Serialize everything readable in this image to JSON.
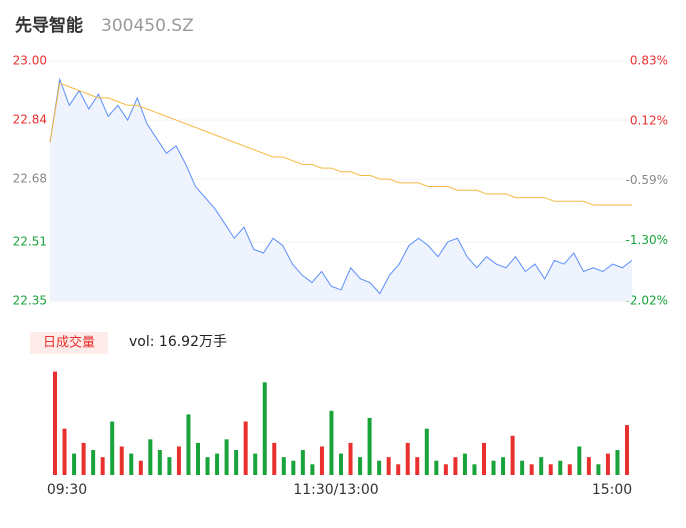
{
  "header": {
    "name": "先导智能",
    "code": "300450.SZ"
  },
  "volume_button": "日成交量",
  "volume_total": "vol: 16.92万手",
  "chart_data": [
    {
      "type": "line",
      "x": [
        0,
        4,
        8,
        12,
        16,
        20,
        24,
        28,
        32,
        36,
        40,
        44,
        48,
        52,
        56,
        60,
        64,
        68,
        72,
        76,
        80,
        84,
        88,
        92,
        96,
        100,
        104,
        108,
        112,
        116,
        120,
        124,
        128,
        132,
        136,
        140,
        144,
        148,
        152,
        156,
        160,
        164,
        168,
        172,
        176,
        180,
        184,
        188,
        192,
        196,
        200,
        204,
        208,
        212,
        216,
        220,
        224,
        228,
        232,
        236,
        240
      ],
      "series": [
        {
          "color": "#5b8ff9",
          "fill": "#eef3fd",
          "values": [
            22.78,
            22.95,
            22.88,
            22.92,
            22.87,
            22.91,
            22.85,
            22.88,
            22.84,
            22.9,
            22.83,
            22.79,
            22.75,
            22.77,
            22.72,
            22.66,
            22.63,
            22.6,
            22.56,
            22.52,
            22.55,
            22.49,
            22.48,
            22.52,
            22.5,
            22.45,
            22.42,
            22.4,
            22.43,
            22.39,
            22.38,
            22.44,
            22.41,
            22.4,
            22.37,
            22.42,
            22.45,
            22.5,
            22.52,
            22.5,
            22.47,
            22.51,
            22.52,
            22.47,
            22.44,
            22.47,
            22.45,
            22.44,
            22.47,
            22.43,
            22.45,
            22.41,
            22.46,
            22.45,
            22.48,
            22.43,
            22.44,
            22.43,
            22.45,
            22.44,
            22.46
          ]
        },
        {
          "color": "#f5b942",
          "values": [
            22.78,
            22.94,
            22.93,
            22.92,
            22.91,
            22.9,
            22.9,
            22.89,
            22.88,
            22.88,
            22.87,
            22.86,
            22.85,
            22.84,
            22.83,
            22.82,
            22.81,
            22.8,
            22.79,
            22.78,
            22.77,
            22.76,
            22.75,
            22.74,
            22.74,
            22.73,
            22.72,
            22.72,
            22.71,
            22.71,
            22.7,
            22.7,
            22.69,
            22.69,
            22.68,
            22.68,
            22.67,
            22.67,
            22.67,
            22.66,
            22.66,
            22.66,
            22.65,
            22.65,
            22.65,
            22.64,
            22.64,
            22.64,
            22.63,
            22.63,
            22.63,
            22.63,
            22.62,
            22.62,
            22.62,
            22.62,
            22.61,
            22.61,
            22.61,
            22.61,
            22.61
          ]
        }
      ],
      "xlim": [
        0,
        240
      ],
      "ylim": [
        22.35,
        23.0
      ],
      "yticks": [
        {
          "value": 23.0,
          "label": "23.00"
        },
        22.84,
        22.68,
        22.51,
        22.35
      ],
      "ytick_colors": [
        "#e8312f",
        "#e8312f",
        "#888888",
        "#19a33b",
        "#19a33b"
      ],
      "y2lim": [
        -2.02,
        0.83
      ],
      "y2ticks": [
        {
          "value": 0.83,
          "label": "0.83%"
        },
        {
          "value": 0.12,
          "label": "0.12%"
        },
        {
          "value": -0.59,
          "label": "-0.59%"
        },
        {
          "value": -1.3,
          "label": "-1.30%"
        },
        {
          "value": -2.02,
          "label": "-2.02%"
        }
      ]
    },
    {
      "type": "bar",
      "x": [
        0,
        4,
        8,
        12,
        16,
        20,
        24,
        28,
        32,
        36,
        40,
        44,
        48,
        52,
        56,
        60,
        64,
        68,
        72,
        76,
        80,
        84,
        88,
        92,
        96,
        100,
        104,
        108,
        112,
        116,
        120,
        124,
        128,
        132,
        136,
        140,
        144,
        148,
        152,
        156,
        160,
        164,
        168,
        172,
        176,
        180,
        184,
        188,
        192,
        196,
        200,
        204,
        208,
        212,
        216,
        220,
        224,
        228,
        232,
        236,
        240
      ],
      "values": [
        2900,
        1300,
        600,
        900,
        700,
        500,
        1500,
        800,
        600,
        400,
        1000,
        700,
        500,
        800,
        1700,
        900,
        500,
        600,
        1000,
        700,
        1500,
        600,
        2600,
        900,
        500,
        400,
        700,
        300,
        800,
        1800,
        600,
        900,
        500,
        1600,
        400,
        500,
        300,
        900,
        500,
        1300,
        400,
        300,
        500,
        600,
        300,
        900,
        400,
        500,
        1100,
        400,
        300,
        500,
        300,
        400,
        300,
        800,
        500,
        300,
        600,
        700,
        1400
      ],
      "up_color": "#e8312f",
      "down_color": "#19a33b",
      "xlim": [
        0,
        240
      ],
      "ylim": [
        0,
        3000
      ],
      "xticks": [
        {
          "value": 0,
          "label": "09:30"
        },
        {
          "value": 120,
          "label": "11:30/13:00"
        },
        {
          "value": 240,
          "label": "15:00"
        }
      ]
    }
  ]
}
